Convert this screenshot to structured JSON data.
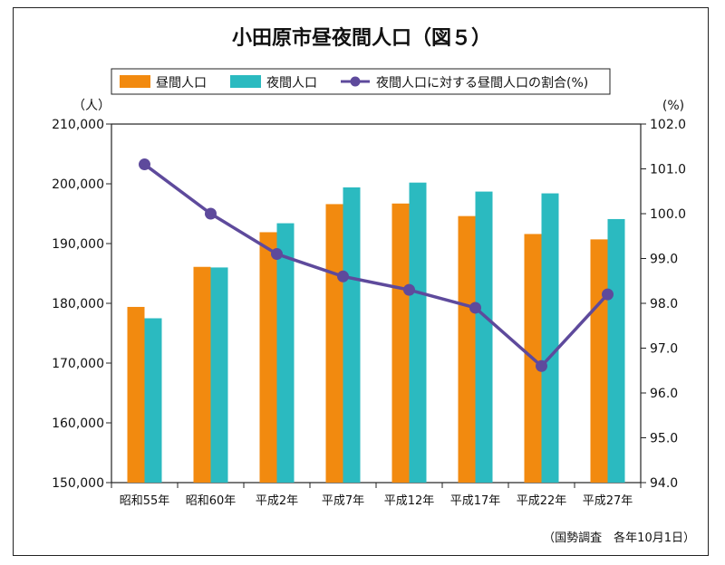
{
  "chart_data": {
    "type": "bar",
    "title": "小田原市昼夜間人口（図５）",
    "categories": [
      "昭和55年",
      "昭和60年",
      "平成2年",
      "平成7年",
      "平成12年",
      "平成17年",
      "平成22年",
      "平成27年"
    ],
    "series": [
      {
        "name": "昼間人口",
        "type": "bar",
        "axis": "left",
        "color": "#F28A0F",
        "values": [
          179400,
          186100,
          191900,
          196600,
          196700,
          194600,
          191600,
          190700
        ]
      },
      {
        "name": "夜間人口",
        "type": "bar",
        "axis": "left",
        "color": "#2BBAC0",
        "values": [
          177500,
          186000,
          193400,
          199400,
          200200,
          198700,
          198400,
          194100
        ]
      },
      {
        "name": "夜間人口に対する昼間人口の割合(%)",
        "type": "line",
        "axis": "right",
        "color": "#5E4A9C",
        "values": [
          101.1,
          100.0,
          99.1,
          98.6,
          98.3,
          97.9,
          96.6,
          98.2
        ]
      }
    ],
    "y_left": {
      "unit": "（人）",
      "range": [
        150000,
        210000
      ],
      "ticks": [
        "150,000",
        "160,000",
        "170,000",
        "180,000",
        "190,000",
        "200,000",
        "210,000"
      ]
    },
    "y_right": {
      "unit": "(%)",
      "range": [
        94.0,
        102.0
      ],
      "ticks": [
        "94.0",
        "95.0",
        "96.0",
        "97.0",
        "98.0",
        "99.0",
        "100.0",
        "101.0",
        "102.0"
      ]
    },
    "legend_position": "top",
    "grid": false,
    "source": "（国勢調査　各年10月1日）"
  }
}
